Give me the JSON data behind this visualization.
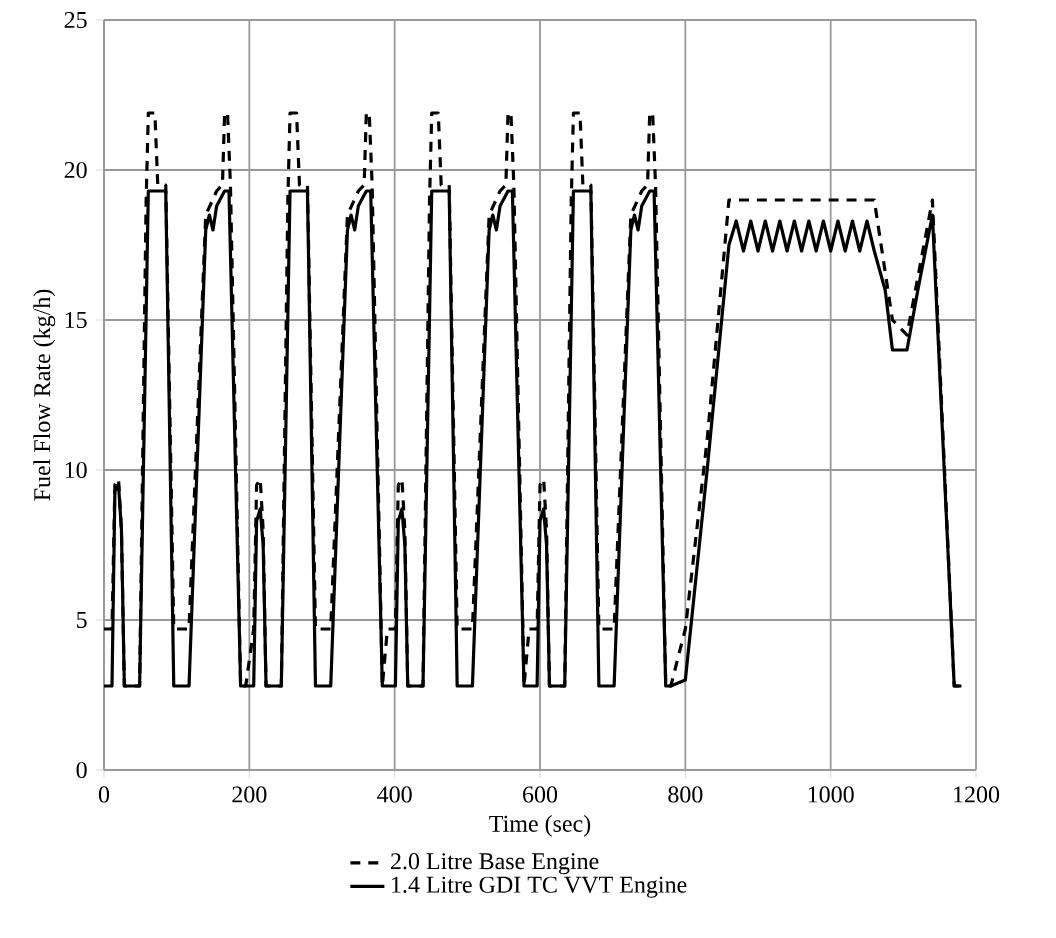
{
  "chart_data": {
    "type": "line",
    "xlabel": "Time (sec)",
    "ylabel": "Fuel Flow Rate (kg/h)",
    "xlim": [
      0,
      1200
    ],
    "ylim": [
      0,
      25
    ],
    "xticks": [
      0,
      200,
      400,
      600,
      800,
      1000,
      1200
    ],
    "yticks": [
      0,
      5,
      10,
      15,
      20,
      25
    ],
    "grid": true,
    "legend": "bottom",
    "marker": "none",
    "series": [
      {
        "name": "2.0 Litre Base Engine",
        "color": "#000000",
        "line_style": "dashed",
        "x": [
          0,
          11,
          15,
          20,
          24,
          28,
          49,
          58,
          61,
          70,
          74,
          85,
          96,
          117,
          140,
          155,
          163,
          166,
          170,
          174,
          188,
          195,
          206,
          210,
          215,
          219,
          223,
          244,
          253,
          256,
          265,
          269,
          280,
          291,
          312,
          335,
          350,
          358,
          361,
          365,
          369,
          383,
          390,
          401,
          405,
          410,
          414,
          418,
          439,
          448,
          451,
          460,
          464,
          475,
          486,
          507,
          530,
          545,
          553,
          556,
          560,
          564,
          578,
          585,
          596,
          600,
          605,
          609,
          613,
          634,
          643,
          646,
          655,
          659,
          670,
          681,
          702,
          725,
          740,
          748,
          751,
          755,
          759,
          773,
          780,
          800,
          830,
          860,
          1060,
          1085,
          1105,
          1140,
          1170,
          1180
        ],
        "values": [
          4.7,
          4.7,
          9.5,
          9.7,
          8,
          2.8,
          2.8,
          19,
          21.9,
          21.9,
          19.5,
          19.5,
          4.7,
          4.7,
          18.5,
          19.3,
          19.5,
          21.9,
          21.9,
          19.5,
          2.8,
          2.8,
          4.7,
          9.5,
          9.7,
          8,
          2.8,
          2.8,
          19,
          21.9,
          21.9,
          19.5,
          19.5,
          4.7,
          4.7,
          18.5,
          19.3,
          19.5,
          21.9,
          21.9,
          19.5,
          2.8,
          4.7,
          4.7,
          9.5,
          9.7,
          8,
          2.8,
          2.8,
          19,
          21.9,
          21.9,
          19.5,
          19.5,
          4.7,
          4.7,
          18.5,
          19.3,
          19.5,
          21.9,
          21.9,
          19.5,
          2.8,
          4.7,
          4.7,
          9.5,
          9.7,
          8,
          2.8,
          2.8,
          19,
          21.9,
          21.9,
          19.5,
          19.5,
          4.7,
          4.7,
          18.5,
          19.3,
          19.5,
          21.9,
          21.9,
          19.5,
          2.8,
          2.8,
          4.7,
          11,
          19,
          19,
          15,
          14.5,
          19,
          2.8,
          2.8
        ]
      },
      {
        "name": "1.4 Litre GDI TC VVT Engine",
        "color": "#000000",
        "line_style": "solid",
        "x": [
          0,
          11,
          15,
          20,
          24,
          28,
          49,
          61,
          85,
          96,
          117,
          140,
          145,
          150,
          155,
          166,
          172,
          188,
          195,
          206,
          210,
          215,
          219,
          223,
          244,
          256,
          280,
          291,
          312,
          335,
          340,
          345,
          350,
          361,
          367,
          383,
          390,
          401,
          405,
          410,
          414,
          418,
          439,
          451,
          475,
          486,
          507,
          530,
          535,
          540,
          545,
          556,
          562,
          578,
          585,
          596,
          600,
          605,
          609,
          613,
          634,
          646,
          670,
          681,
          702,
          725,
          730,
          735,
          740,
          751,
          757,
          773,
          780,
          800,
          830,
          860,
          870,
          880,
          890,
          900,
          910,
          920,
          930,
          940,
          950,
          960,
          970,
          980,
          990,
          1000,
          1010,
          1020,
          1030,
          1040,
          1050,
          1060,
          1075,
          1085,
          1105,
          1120,
          1140,
          1170,
          1180
        ],
        "values": [
          2.8,
          2.8,
          9.3,
          9.5,
          8,
          2.8,
          2.8,
          19.3,
          19.3,
          2.8,
          2.8,
          18,
          18.5,
          18,
          18.8,
          19.3,
          19.3,
          2.8,
          2.8,
          2.8,
          8.3,
          8.7,
          7.5,
          2.8,
          2.8,
          19.3,
          19.3,
          2.8,
          2.8,
          18,
          18.5,
          18,
          18.8,
          19.3,
          19.3,
          2.8,
          2.8,
          2.8,
          8.3,
          8.7,
          7.5,
          2.8,
          2.8,
          19.3,
          19.3,
          2.8,
          2.8,
          18,
          18.5,
          18,
          18.8,
          19.3,
          19.3,
          2.8,
          2.8,
          2.8,
          8.3,
          8.7,
          7.5,
          2.8,
          2.8,
          19.3,
          19.3,
          2.8,
          2.8,
          18,
          18.5,
          18,
          18.8,
          19.3,
          19.3,
          2.8,
          2.8,
          3,
          10,
          17.5,
          18.3,
          17.3,
          18.3,
          17.3,
          18.3,
          17.3,
          18.3,
          17.3,
          18.3,
          17.3,
          18.3,
          17.3,
          18.3,
          17.3,
          18.3,
          17.3,
          18.3,
          17.3,
          18.3,
          17.3,
          16,
          14,
          14,
          16,
          18.5,
          2.8,
          2.8
        ]
      }
    ]
  }
}
